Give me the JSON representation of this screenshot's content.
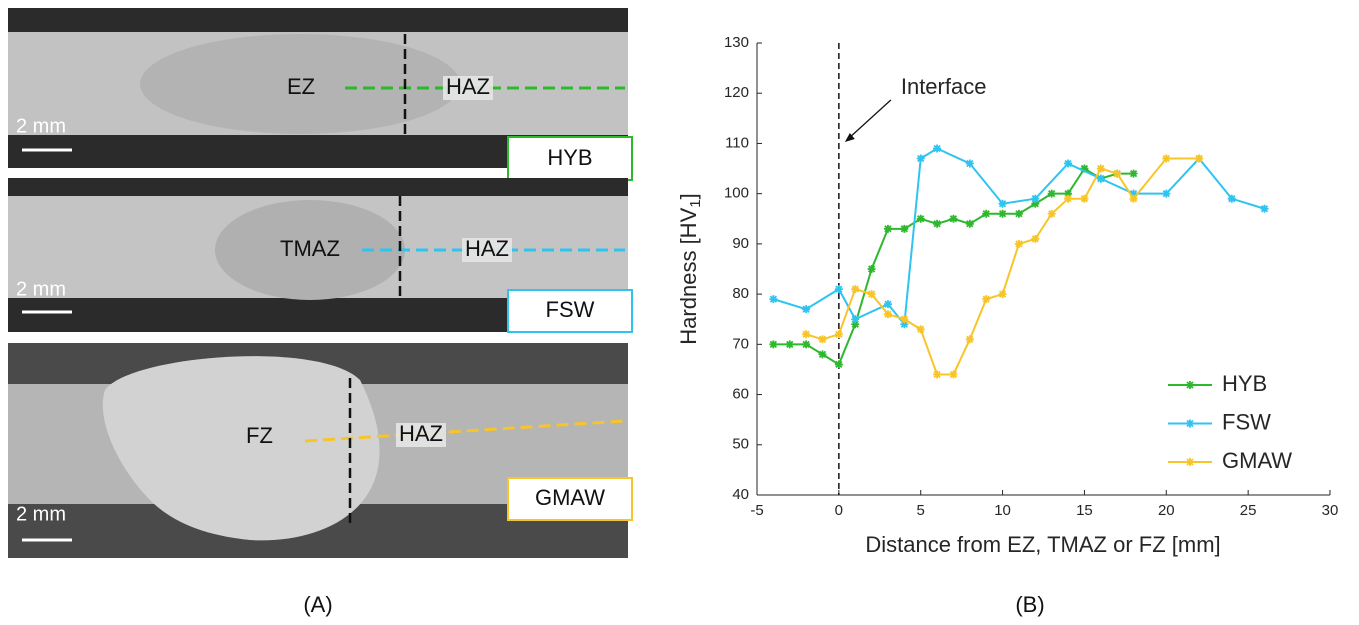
{
  "panels": [
    {
      "region_a": "EZ",
      "region_b": "HAZ",
      "scale": "2 mm",
      "process": "HYB"
    },
    {
      "region_a": "TMAZ",
      "region_b": "HAZ",
      "scale": "2 mm",
      "process": "FSW"
    },
    {
      "region_a": "FZ",
      "region_b": "HAZ",
      "scale": "2 mm",
      "process": "GMAW"
    }
  ],
  "panel_labels": [
    "(A)",
    "(B)"
  ],
  "chart_data": {
    "type": "line",
    "xlabel": "Distance from EZ, TMAZ or FZ [mm]",
    "ylabel": [
      "Hardness [HV",
      "1",
      "]"
    ],
    "annotation": "Interface",
    "xlim": [
      -5,
      30
    ],
    "xticks": [
      -5,
      0,
      5,
      10,
      15,
      20,
      25,
      30
    ],
    "ylim": [
      40,
      130
    ],
    "yticks": [
      40,
      50,
      60,
      70,
      80,
      90,
      100,
      110,
      120,
      130
    ],
    "grid": false,
    "legend": "lower right",
    "series": [
      {
        "name": "HYB",
        "color": "#2db82d",
        "x": [
          -4,
          -3,
          -2,
          -1,
          0,
          1,
          2,
          3,
          4,
          5,
          6,
          7,
          8,
          9,
          10,
          11,
          12,
          13,
          14,
          15,
          16,
          17,
          18
        ],
        "values": [
          70,
          70,
          70,
          68,
          66,
          74,
          85,
          93,
          93,
          95,
          94,
          95,
          94,
          96,
          96,
          96,
          98,
          100,
          100,
          105,
          103,
          104,
          104
        ]
      },
      {
        "name": "FSW",
        "color": "#2fc4f0",
        "x": [
          -4,
          -2,
          0,
          1,
          3,
          4,
          5,
          6,
          8,
          10,
          12,
          14,
          16,
          18,
          20,
          22,
          24,
          26
        ],
        "values": [
          79,
          77,
          81,
          75,
          78,
          74,
          107,
          109,
          106,
          98,
          99,
          106,
          103,
          100,
          100,
          107,
          99,
          97
        ]
      },
      {
        "name": "GMAW",
        "color": "#f7c52a",
        "x": [
          -2,
          -1,
          0,
          1,
          2,
          3,
          4,
          5,
          6,
          7,
          8,
          9,
          10,
          11,
          12,
          13,
          14,
          15,
          16,
          17,
          18,
          20,
          22
        ],
        "values": [
          72,
          71,
          72,
          81,
          80,
          76,
          75,
          73,
          64,
          64,
          71,
          79,
          80,
          90,
          91,
          96,
          99,
          99,
          105,
          104,
          99,
          107,
          107
        ]
      }
    ]
  }
}
